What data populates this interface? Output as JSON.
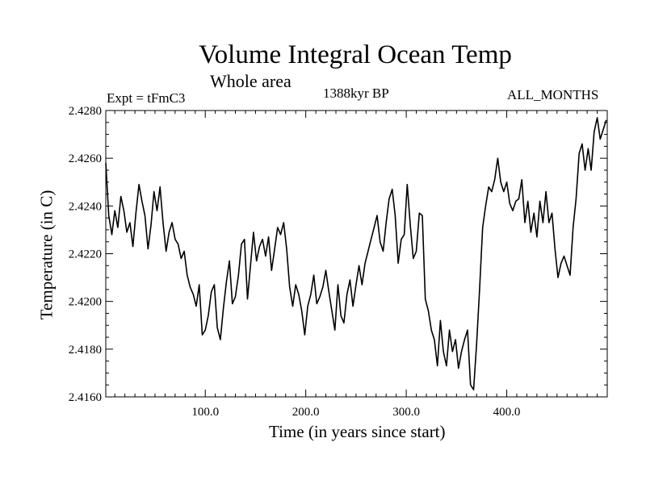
{
  "chart_data": {
    "type": "line",
    "title": "Volume Integral Ocean Temp",
    "subtitle": "Whole area",
    "left_annotation": "Expt = tFmC3",
    "center_annotation": "1388kyr BP",
    "right_annotation": "ALL_MONTHS",
    "xlabel": "Time (in years since start)",
    "ylabel": "Temperature (in C)",
    "xlim": [
      1,
      500
    ],
    "ylim": [
      2.416,
      2.428
    ],
    "x_ticks": [
      100,
      200,
      300,
      400
    ],
    "x_tick_labels": [
      "100.0",
      "200.0",
      "300.0",
      "400.0"
    ],
    "y_ticks": [
      2.416,
      2.418,
      2.42,
      2.422,
      2.424,
      2.426,
      2.428
    ],
    "y_tick_labels": [
      "2.4160",
      "2.4180",
      "2.4200",
      "2.4220",
      "2.4240",
      "2.4260",
      "2.4280"
    ],
    "series": [
      {
        "name": "Volume Integral Ocean Temp",
        "x": [
          1,
          4,
          7,
          10,
          13,
          16,
          19,
          22,
          25,
          28,
          31,
          34,
          37,
          40,
          43,
          46,
          49,
          52,
          55,
          58,
          61,
          64,
          67,
          70,
          73,
          76,
          79,
          82,
          85,
          88,
          91,
          94,
          97,
          100,
          103,
          106,
          109,
          112,
          115,
          118,
          121,
          124,
          127,
          130,
          133,
          136,
          139,
          142,
          145,
          148,
          151,
          154,
          157,
          160,
          163,
          166,
          169,
          172,
          175,
          178,
          181,
          184,
          187,
          190,
          193,
          196,
          199,
          202,
          205,
          208,
          211,
          214,
          217,
          220,
          223,
          226,
          229,
          232,
          235,
          238,
          241,
          244,
          247,
          250,
          253,
          256,
          259,
          262,
          265,
          268,
          271,
          274,
          277,
          280,
          283,
          286,
          289,
          292,
          295,
          298,
          301,
          304,
          307,
          310,
          313,
          316,
          319,
          322,
          325,
          328,
          331,
          334,
          337,
          340,
          343,
          346,
          349,
          352,
          355,
          358,
          361,
          364,
          367,
          370,
          373,
          376,
          379,
          382,
          385,
          388,
          391,
          394,
          397,
          400,
          403,
          406,
          409,
          412,
          415,
          418,
          421,
          424,
          427,
          430,
          433,
          436,
          439,
          442,
          445,
          448,
          451,
          454,
          457,
          460,
          463,
          466,
          469,
          472,
          475,
          478,
          481,
          484,
          487,
          490,
          493,
          496,
          499
        ],
        "values": [
          2.4258,
          2.4236,
          2.4228,
          2.4238,
          2.4231,
          2.4244,
          2.4238,
          2.4229,
          2.4233,
          2.4223,
          2.4237,
          2.4249,
          2.4242,
          2.4236,
          2.4222,
          2.4232,
          2.4246,
          2.4238,
          2.4248,
          2.4233,
          2.4221,
          2.4229,
          2.4233,
          2.4226,
          2.4224,
          2.4218,
          2.4221,
          2.4211,
          2.4206,
          2.4203,
          2.4198,
          2.4207,
          2.4186,
          2.4188,
          2.4194,
          2.4204,
          2.4207,
          2.4189,
          2.4184,
          2.4197,
          2.4208,
          2.4217,
          2.4199,
          2.4202,
          2.4211,
          2.4224,
          2.4226,
          2.4201,
          2.4215,
          2.4229,
          2.4217,
          2.4223,
          2.4226,
          2.4219,
          2.4227,
          2.4213,
          2.4222,
          2.4231,
          2.4228,
          2.4233,
          2.4222,
          2.4206,
          2.4198,
          2.4207,
          2.4203,
          2.4196,
          2.4186,
          2.4198,
          2.4203,
          2.4211,
          2.4199,
          2.4202,
          2.4206,
          2.4213,
          2.4204,
          2.4196,
          2.4188,
          2.4207,
          2.4194,
          2.4191,
          2.4203,
          2.4209,
          2.4198,
          2.4207,
          2.4215,
          2.4207,
          2.4216,
          2.4221,
          2.4226,
          2.4231,
          2.4236,
          2.4225,
          2.4221,
          2.4233,
          2.4243,
          2.4247,
          2.4236,
          2.4216,
          2.4226,
          2.4228,
          2.4249,
          2.4232,
          2.4218,
          2.4221,
          2.4237,
          2.4236,
          2.4201,
          2.4196,
          2.4188,
          2.4184,
          2.4173,
          2.4192,
          2.4179,
          2.4173,
          2.4188,
          2.4179,
          2.4184,
          2.4172,
          2.4179,
          2.4184,
          2.4188,
          2.4165,
          2.4163,
          2.4182,
          2.4205,
          2.4231,
          2.424,
          2.4248,
          2.4246,
          2.4251,
          2.426,
          2.425,
          2.4246,
          2.425,
          2.4241,
          2.4238,
          2.4242,
          2.4243,
          2.4251,
          2.4233,
          2.4242,
          2.4229,
          2.4237,
          2.4227,
          2.4242,
          2.4233,
          2.4246,
          2.4233,
          2.4237,
          2.4222,
          2.421,
          2.4216,
          2.4219,
          2.4215,
          2.4211,
          2.4231,
          2.4243,
          2.4262,
          2.4266,
          2.4255,
          2.4264,
          2.4255,
          2.4271,
          2.4277,
          2.4268,
          2.4272,
          2.4276
        ]
      }
    ]
  }
}
